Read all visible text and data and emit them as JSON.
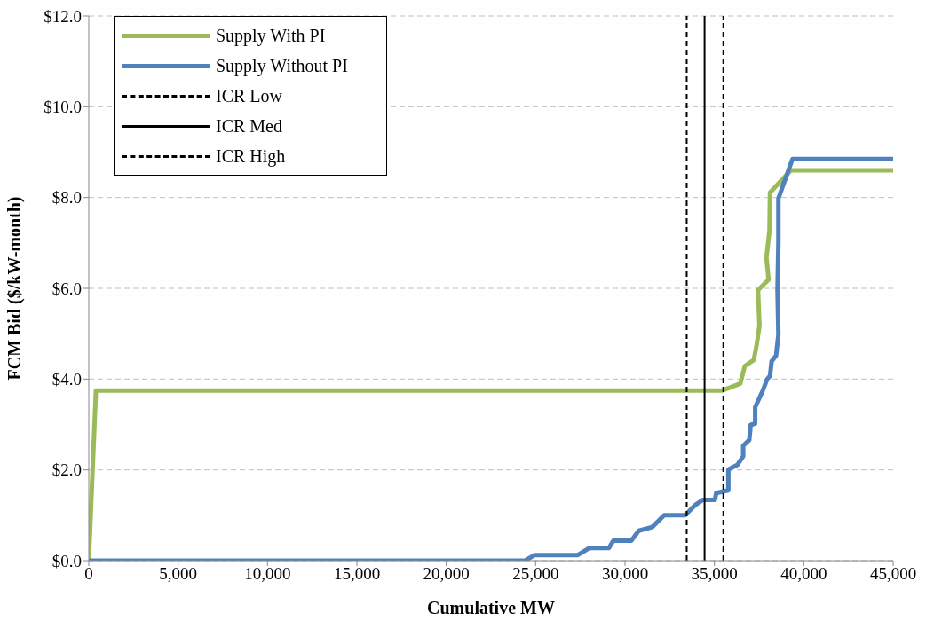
{
  "chart_data": {
    "type": "line",
    "xlabel": "Cumulative MW",
    "ylabel": "FCM Bid ($/kW-month)",
    "series": [
      {
        "name": "Supply With PI",
        "color": "#9bbb59",
        "x": [
          0,
          400,
          35450,
          36450,
          36700,
          37200,
          37350,
          37520,
          37440,
          38030,
          37910,
          38080,
          38110,
          39280,
          45000
        ],
        "values": [
          0,
          3.75,
          3.75,
          3.9,
          4.29,
          4.42,
          4.72,
          5.17,
          5.96,
          6.19,
          6.68,
          7.26,
          8.11,
          8.6,
          8.6
        ]
      },
      {
        "name": "Supply Without PI",
        "color": "#4f81bd",
        "x": [
          0,
          24420,
          24920,
          27340,
          28010,
          29100,
          29350,
          30350,
          30770,
          31520,
          32190,
          33360,
          33940,
          34360,
          35030,
          35100,
          35780,
          35780,
          36280,
          36610,
          36610,
          36950,
          37030,
          37280,
          37280,
          37700,
          37950,
          38110,
          38200,
          38450,
          38580,
          38530,
          38580,
          38580,
          39370,
          45000
        ],
        "values": [
          0,
          0,
          0.12,
          0.12,
          0.28,
          0.28,
          0.44,
          0.44,
          0.66,
          0.74,
          1.0,
          1.0,
          1.23,
          1.34,
          1.34,
          1.49,
          1.55,
          2.01,
          2.11,
          2.3,
          2.53,
          2.66,
          2.99,
          3.02,
          3.38,
          3.74,
          4.0,
          4.07,
          4.39,
          4.52,
          4.98,
          5.96,
          7.0,
          7.98,
          8.85,
          8.85
        ]
      },
      {
        "name": "ICR Low",
        "color": "#000000",
        "line_style": "dashed",
        "x": [
          33450,
          33450
        ],
        "values": [
          0,
          12
        ]
      },
      {
        "name": "ICR Med",
        "color": "#000000",
        "line_style": "solid",
        "x": [
          34450,
          34450
        ],
        "values": [
          0,
          12
        ]
      },
      {
        "name": "ICR High",
        "color": "#000000",
        "line_style": "dashed",
        "x": [
          35500,
          35500
        ],
        "values": [
          0,
          12
        ]
      }
    ],
    "xlim": [
      0,
      45000
    ],
    "xticks": [
      {
        "value": 0,
        "label": "0"
      },
      {
        "value": 5000,
        "label": "5,000"
      },
      {
        "value": 10000,
        "label": "10,000"
      },
      {
        "value": 15000,
        "label": "15,000"
      },
      {
        "value": 20000,
        "label": "20,000"
      },
      {
        "value": 25000,
        "label": "25,000"
      },
      {
        "value": 30000,
        "label": "30,000"
      },
      {
        "value": 35000,
        "label": "35,000"
      },
      {
        "value": 40000,
        "label": "40,000"
      },
      {
        "value": 45000,
        "label": "45,000"
      }
    ],
    "ylim": [
      0,
      12
    ],
    "yticks": [
      {
        "value": 0,
        "label": "$0.0"
      },
      {
        "value": 2,
        "label": "$2.0"
      },
      {
        "value": 4,
        "label": "$4.0"
      },
      {
        "value": 6,
        "label": "$6.0"
      },
      {
        "value": 8,
        "label": "$8.0"
      },
      {
        "value": 10,
        "label": "$10.0"
      },
      {
        "value": 12,
        "label": "$12.0"
      }
    ],
    "grid": "y",
    "legend": "top left",
    "marker": "none",
    "line_style": "solid"
  }
}
